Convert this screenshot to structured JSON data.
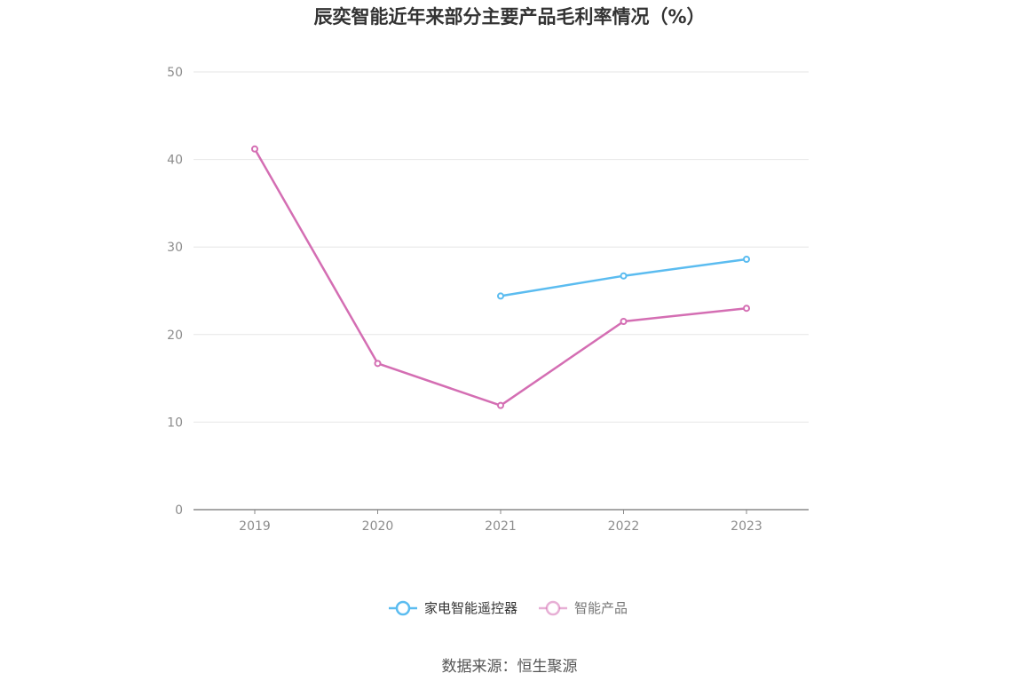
{
  "chart_data": {
    "type": "line",
    "title": "辰奕智能近年来部分主要产品毛利率情况（%）",
    "x": [
      "2019",
      "2020",
      "2021",
      "2022",
      "2023"
    ],
    "ylim": [
      0,
      50
    ],
    "yticks": [
      0,
      10,
      20,
      30,
      40,
      50
    ],
    "grid": true,
    "legend_position": "bottom",
    "series": [
      {
        "name": "家电智能遥控器",
        "color": "#5bbcf0",
        "values": [
          null,
          null,
          24.4,
          26.7,
          28.6
        ]
      },
      {
        "name": "智能产品",
        "color": "#d46eb3",
        "values": [
          41.2,
          16.7,
          11.9,
          21.5,
          23.0
        ]
      }
    ],
    "source": "数据来源：恒生聚源"
  }
}
